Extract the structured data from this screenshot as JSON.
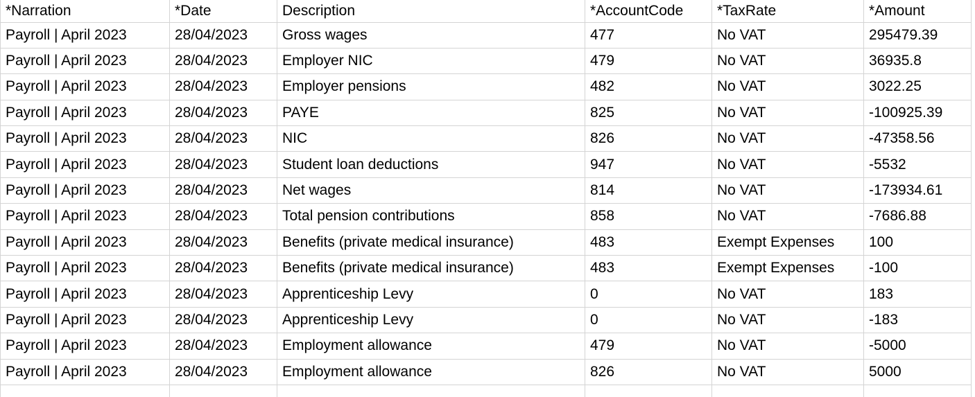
{
  "colors": {
    "gridline": "#d4d4d4",
    "text": "#000000",
    "background": "#ffffff"
  },
  "table": {
    "columns": [
      {
        "id": "narration",
        "label": "*Narration",
        "data_align": "left"
      },
      {
        "id": "date",
        "label": "*Date",
        "data_align": "left"
      },
      {
        "id": "description",
        "label": "Description",
        "data_align": "left"
      },
      {
        "id": "account-code",
        "label": "*AccountCode",
        "data_align": "right"
      },
      {
        "id": "tax-rate",
        "label": "*TaxRate",
        "data_align": "left"
      },
      {
        "id": "amount",
        "label": "*Amount",
        "data_align": "right"
      }
    ],
    "rows": [
      [
        "Payroll | April 2023",
        "28/04/2023",
        "Gross wages",
        "477",
        "No VAT",
        "295479.39"
      ],
      [
        "Payroll | April 2023",
        "28/04/2023",
        "Employer NIC",
        "479",
        "No VAT",
        "36935.8"
      ],
      [
        "Payroll | April 2023",
        "28/04/2023",
        "Employer pensions",
        "482",
        "No VAT",
        "3022.25"
      ],
      [
        "Payroll | April 2023",
        "28/04/2023",
        "PAYE",
        "825",
        "No VAT",
        "-100925.39"
      ],
      [
        "Payroll | April 2023",
        "28/04/2023",
        "NIC",
        "826",
        "No VAT",
        "-47358.56"
      ],
      [
        "Payroll | April 2023",
        "28/04/2023",
        "Student loan deductions",
        "947",
        "No VAT",
        "-5532"
      ],
      [
        "Payroll | April 2023",
        "28/04/2023",
        "Net wages",
        "814",
        "No VAT",
        "-173934.61"
      ],
      [
        "Payroll | April 2023",
        "28/04/2023",
        "Total pension contributions",
        "858",
        "No VAT",
        "-7686.88"
      ],
      [
        "Payroll | April 2023",
        "28/04/2023",
        "Benefits (private medical insurance)",
        "483",
        "Exempt Expenses",
        "100"
      ],
      [
        "Payroll | April 2023",
        "28/04/2023",
        "Benefits (private medical insurance)",
        "483",
        "Exempt Expenses",
        "-100"
      ],
      [
        "Payroll | April 2023",
        "28/04/2023",
        "Apprenticeship Levy",
        "0",
        "No VAT",
        "183"
      ],
      [
        "Payroll | April 2023",
        "28/04/2023",
        "Apprenticeship Levy",
        "0",
        "No VAT",
        "-183"
      ],
      [
        "Payroll | April 2023",
        "28/04/2023",
        "Employment allowance",
        "479",
        "No VAT",
        "-5000"
      ],
      [
        "Payroll | April 2023",
        "28/04/2023",
        "Employment allowance",
        "826",
        "No VAT",
        "5000"
      ]
    ]
  }
}
